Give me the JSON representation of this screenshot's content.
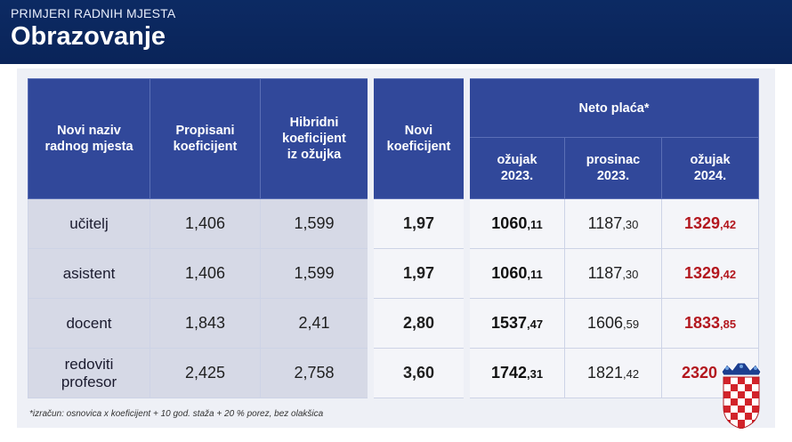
{
  "header": {
    "kicker": "PRIMJERI RADNIH MJESTA",
    "title": "Obrazovanje"
  },
  "columns": {
    "name": [
      "Novi naziv",
      "radnog mjesta"
    ],
    "propisani": [
      "Propisani",
      "koeficijent"
    ],
    "hibridni": [
      "Hibridni",
      "koeficijent",
      "iz ožujka"
    ],
    "novi": [
      "Novi",
      "koeficijent"
    ],
    "neto_group": "Neto plaća*",
    "months": [
      [
        "ožujak",
        "2023."
      ],
      [
        "prosinac",
        "2023."
      ],
      [
        "ožujak",
        "2024."
      ]
    ]
  },
  "rows": [
    {
      "name": [
        "učitelj"
      ],
      "propisani": "1,406",
      "hibridni": "1,599",
      "novi": "1,97",
      "m1": [
        "1060",
        ",11"
      ],
      "m2": [
        "1187",
        ",30"
      ],
      "m3": [
        "1329",
        ",42"
      ]
    },
    {
      "name": [
        "asistent"
      ],
      "propisani": "1,406",
      "hibridni": "1,599",
      "novi": "1,97",
      "m1": [
        "1060",
        ",11"
      ],
      "m2": [
        "1187",
        ",30"
      ],
      "m3": [
        "1329",
        ",42"
      ]
    },
    {
      "name": [
        "docent"
      ],
      "propisani": "1,843",
      "hibridni": "2,41",
      "novi": "2,80",
      "m1": [
        "1537",
        ",47"
      ],
      "m2": [
        "1606",
        ",59"
      ],
      "m3": [
        "1833",
        ",85"
      ]
    },
    {
      "name": [
        "redoviti",
        "profesor"
      ],
      "propisani": "2,425",
      "hibridni": "2,758",
      "novi": "3,60",
      "m1": [
        "1742",
        ",31"
      ],
      "m2": [
        "1821",
        ",42"
      ],
      "m3": [
        "2320",
        ""
      ]
    }
  ],
  "footnote": "*izračun: osnovica x koeficijent + 10 god. staža + 20 % porez, bez olakšica",
  "colors": {
    "header": "#0c2a63",
    "table_head": "#31489a",
    "highlight": "#b3171e"
  },
  "icons": {
    "crest": "croatian-coat-of-arms-icon"
  }
}
